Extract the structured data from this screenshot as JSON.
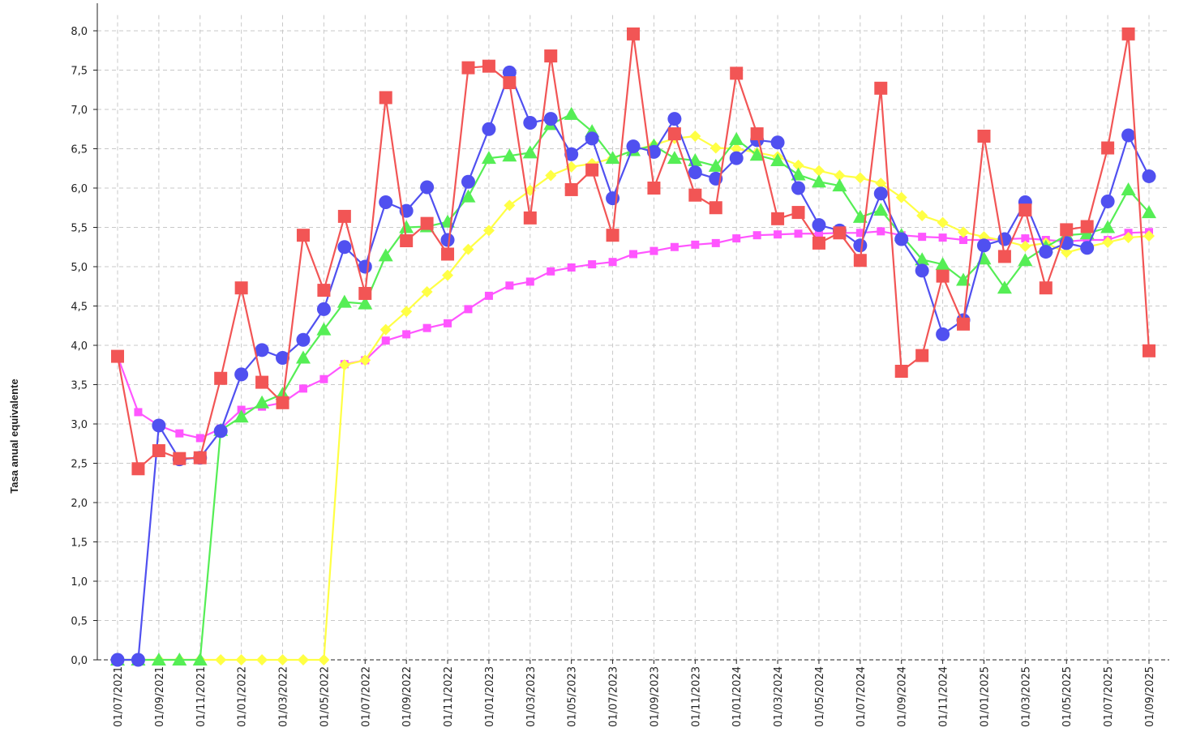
{
  "chart_data": {
    "type": "line",
    "y_label": "Tasa anual equivalente",
    "categories": [
      "01/07/2021",
      null,
      "01/09/2021",
      null,
      "01/11/2021",
      null,
      "01/01/2022",
      null,
      "01/03/2022",
      null,
      "01/05/2022",
      null,
      "01/07/2022",
      null,
      "01/09/2022",
      null,
      "01/11/2022",
      null,
      "01/01/2023",
      null,
      "01/03/2023",
      null,
      "01/05/2023",
      null,
      "01/07/2023",
      null,
      "01/09/2023",
      null,
      "01/11/2023",
      null,
      "01/01/2024",
      null,
      "01/03/2024",
      null,
      "01/05/2024",
      null,
      "01/07/2024",
      null,
      "01/09/2024",
      null,
      "01/11/2024",
      null,
      "01/01/2025",
      null,
      "01/03/2025",
      null,
      "01/05/2025",
      null,
      "01/07/2025",
      null,
      "01/09/2025"
    ],
    "ylim": [
      0,
      8.2
    ],
    "yticks": [
      {
        "value": 0,
        "label": "0,0"
      },
      {
        "value": 0.5,
        "label": "0,5"
      },
      {
        "value": 1,
        "label": "1,0"
      },
      {
        "value": 1.5,
        "label": "1,5"
      },
      {
        "value": 2,
        "label": "2,0"
      },
      {
        "value": 2.5,
        "label": "2,5"
      },
      {
        "value": 3,
        "label": "3,0"
      },
      {
        "value": 3.5,
        "label": "3,5"
      },
      {
        "value": 4,
        "label": "4,0"
      },
      {
        "value": 4.5,
        "label": "4,5"
      },
      {
        "value": 5,
        "label": "5,0"
      },
      {
        "value": 5.5,
        "label": "5,5"
      },
      {
        "value": 6,
        "label": "6,0"
      },
      {
        "value": 6.5,
        "label": "6,5"
      },
      {
        "value": 7,
        "label": "7,0"
      },
      {
        "value": 7.5,
        "label": "7,5"
      },
      {
        "value": 8,
        "label": "8,0"
      }
    ],
    "grid": true,
    "series": [
      {
        "color": "#ff55ff",
        "marker": "small-square",
        "values": [
          3.86,
          3.15,
          2.98,
          2.88,
          2.82,
          2.94,
          3.18,
          3.22,
          3.27,
          3.45,
          3.57,
          3.76,
          3.81,
          4.06,
          4.14,
          4.22,
          4.28,
          4.46,
          4.63,
          4.76,
          4.81,
          4.94,
          4.99,
          5.03,
          5.06,
          5.16,
          5.2,
          5.25,
          5.28,
          5.3,
          5.36,
          5.4,
          5.41,
          5.42,
          5.42,
          5.43,
          5.43,
          5.45,
          5.4,
          5.38,
          5.37,
          5.34,
          5.34,
          5.35,
          5.36,
          5.34,
          5.32,
          5.34,
          5.34,
          5.43,
          5.44
        ]
      },
      {
        "color": "#ffff44",
        "marker": "diamond",
        "values": [
          0,
          0,
          0,
          0,
          0,
          0,
          0,
          0,
          0,
          0,
          0,
          3.75,
          3.81,
          4.2,
          4.43,
          4.68,
          4.89,
          5.22,
          5.46,
          5.78,
          5.97,
          6.16,
          6.27,
          6.31,
          6.38,
          6.48,
          6.55,
          6.63,
          6.66,
          6.51,
          6.5,
          6.45,
          6.4,
          6.29,
          6.22,
          6.16,
          6.13,
          6.06,
          5.88,
          5.65,
          5.56,
          5.44,
          5.38,
          5.33,
          5.26,
          5.3,
          5.18,
          5.25,
          5.31,
          5.37,
          5.39
        ]
      },
      {
        "color": "#55ee55",
        "marker": "triangle",
        "values": [
          0,
          0,
          0,
          0,
          0,
          2.92,
          3.09,
          3.27,
          3.38,
          3.84,
          4.2,
          4.55,
          4.53,
          5.14,
          5.5,
          5.51,
          5.57,
          5.89,
          6.38,
          6.41,
          6.45,
          6.81,
          6.94,
          6.72,
          6.38,
          6.48,
          6.54,
          6.38,
          6.35,
          6.28,
          6.62,
          6.42,
          6.35,
          6.17,
          6.08,
          6.03,
          5.63,
          5.72,
          5.4,
          5.09,
          5.03,
          4.83,
          5.1,
          4.73,
          5.08,
          5.25,
          5.4,
          5.42,
          5.5,
          5.98,
          5.69
        ]
      },
      {
        "color": "#5050f0",
        "marker": "circle",
        "values": [
          0,
          0,
          2.98,
          2.55,
          2.57,
          2.91,
          3.63,
          3.94,
          3.84,
          4.07,
          4.46,
          5.25,
          5.0,
          5.82,
          5.71,
          6.01,
          5.34,
          6.08,
          6.75,
          7.47,
          6.83,
          6.88,
          6.43,
          6.63,
          5.87,
          6.53,
          6.46,
          6.88,
          6.2,
          6.12,
          6.38,
          6.61,
          6.58,
          6.0,
          5.53,
          5.46,
          5.27,
          5.93,
          5.35,
          4.95,
          4.14,
          4.32,
          5.27,
          5.35,
          5.82,
          5.19,
          5.3,
          5.24,
          5.83,
          6.67,
          6.15
        ]
      },
      {
        "color": "#f25555",
        "marker": "square",
        "values": [
          3.86,
          2.43,
          2.66,
          2.56,
          2.57,
          3.58,
          4.73,
          3.53,
          3.27,
          5.4,
          4.7,
          5.64,
          4.66,
          7.15,
          5.33,
          5.55,
          5.16,
          7.53,
          7.55,
          7.34,
          5.62,
          7.68,
          5.98,
          6.23,
          5.4,
          7.96,
          6.0,
          6.69,
          5.91,
          5.75,
          7.46,
          6.69,
          5.61,
          5.69,
          5.3,
          5.43,
          5.08,
          7.27,
          3.67,
          3.87,
          4.88,
          4.27,
          6.66,
          5.13,
          5.72,
          4.73,
          5.47,
          5.51,
          6.51,
          7.96,
          3.93
        ]
      }
    ]
  }
}
